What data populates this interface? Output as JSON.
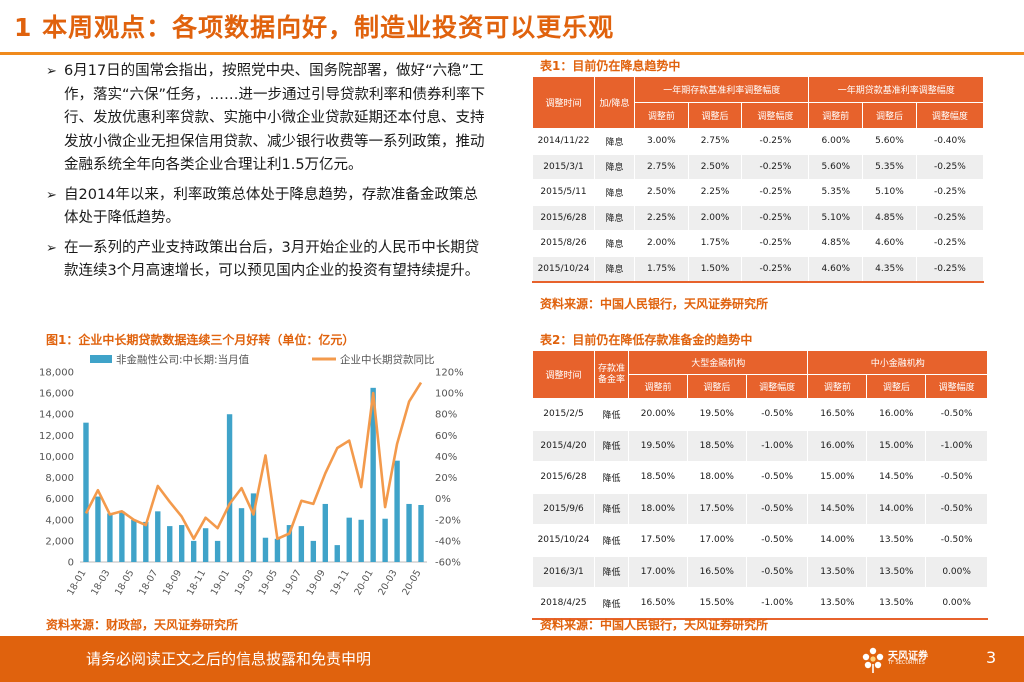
{
  "title": "1  本周观点：各项数据向好，制造业投资可以更乐观",
  "bullets": [
    "6月17日的国常会指出，按照党中央、国务院部署，做好“六稳”工作，落实“六保”任务，……进一步通过引导贷款利率和债券利率下行、发放优惠利率贷款、实施中小微企业贷款延期还本付息、支持发放小微企业无担保信用贷款、减少银行收费等一系列政策，推动金融系统全年向各类企业合理让利1.5万亿元。",
    "自2014年以来，利率政策总体处于降息趋势，存款准备金政策总体处于降低趋势。",
    "在一系列的产业支持政策出台后，3月开始企业的人民币中长期贷款连续3个月高速增长，可以预见国内企业的投资有望持续提升。"
  ],
  "bullet_mark": "➢",
  "fig1": {
    "title": "图1：企业中长期贷款数据连续三个月好转（单位：亿元）",
    "source": "资料来源：财政部，天风证券研究所"
  },
  "chart_data": {
    "type": "bar+line",
    "legend": [
      "非金融性公司:中长期:当月值",
      "企业中长期贷款同比"
    ],
    "x_ticks": [
      "18-01",
      "18-03",
      "18-05",
      "18-07",
      "18-09",
      "18-11",
      "19-01",
      "19-03",
      "19-05",
      "19-07",
      "19-09",
      "19-11",
      "20-01",
      "20-03",
      "20-05"
    ],
    "y_left_ticks": [
      "0",
      "2,000",
      "4,000",
      "6,000",
      "8,000",
      "10,000",
      "12,000",
      "14,000",
      "16,000",
      "18,000"
    ],
    "y_right_ticks": [
      "-60%",
      "-40%",
      "-20%",
      "0%",
      "20%",
      "40%",
      "60%",
      "80%",
      "100%",
      "120%"
    ],
    "ylim_left": [
      0,
      18000
    ],
    "ylim_right": [
      -60,
      120
    ],
    "bar_color": "#3fa3c9",
    "line_color": "#f39a4c",
    "series": [
      {
        "name": "非金融性公司:中长期:当月值",
        "values": [
          13200,
          6200,
          4600,
          4800,
          4000,
          3800,
          4800,
          3400,
          3500,
          2000,
          3200,
          2000,
          14000,
          5100,
          6500,
          2300,
          2200,
          3500,
          3400,
          2000,
          5500,
          1600,
          4200,
          4000,
          16500,
          4100,
          9600,
          5500,
          5400
        ]
      },
      {
        "name": "企业中长期贷款同比",
        "values": [
          -14,
          8,
          -15,
          -12,
          -20,
          -25,
          12,
          -3,
          -17,
          -38,
          -18,
          -28,
          -5,
          10,
          -15,
          41,
          -38,
          -33,
          -2,
          -5,
          24,
          48,
          55,
          11,
          100,
          -8,
          52,
          92,
          110
        ]
      }
    ]
  },
  "table1": {
    "title": "表1：目前仍在降息趋势中",
    "source": "资料来源：中国人民银行，天风证券研究所",
    "head_date": "调整时间",
    "head_dir": "加/降息",
    "group1": "一年期存款基准利率调整幅度",
    "group2": "一年期贷款基准利率调整幅度",
    "sub": [
      "调整前",
      "调整后",
      "调整幅度",
      "调整前",
      "调整后",
      "调整幅度"
    ],
    "rows": [
      [
        "2014/11/22",
        "降息",
        "3.00%",
        "2.75%",
        "-0.25%",
        "6.00%",
        "5.60%",
        "-0.40%"
      ],
      [
        "2015/3/1",
        "降息",
        "2.75%",
        "2.50%",
        "-0.25%",
        "5.60%",
        "5.35%",
        "-0.25%"
      ],
      [
        "2015/5/11",
        "降息",
        "2.50%",
        "2.25%",
        "-0.25%",
        "5.35%",
        "5.10%",
        "-0.25%"
      ],
      [
        "2015/6/28",
        "降息",
        "2.25%",
        "2.00%",
        "-0.25%",
        "5.10%",
        "4.85%",
        "-0.25%"
      ],
      [
        "2015/8/26",
        "降息",
        "2.00%",
        "1.75%",
        "-0.25%",
        "4.85%",
        "4.60%",
        "-0.25%"
      ],
      [
        "2015/10/24",
        "降息",
        "1.75%",
        "1.50%",
        "-0.25%",
        "4.60%",
        "4.35%",
        "-0.25%"
      ]
    ]
  },
  "table2": {
    "title": "表2：目前仍在降低存款准备金的趋势中",
    "source": "资料来源：中国人民银行，天风证券研究所",
    "head_date": "调整时间",
    "head_dir": "存款准备金率",
    "group1": "大型金融机构",
    "group2": "中小金融机构",
    "sub": [
      "调整前",
      "调整后",
      "调整幅度",
      "调整前",
      "调整后",
      "调整幅度"
    ],
    "rows": [
      [
        "2015/2/5",
        "降低",
        "20.00%",
        "19.50%",
        "-0.50%",
        "16.50%",
        "16.00%",
        "-0.50%"
      ],
      [
        "2015/4/20",
        "降低",
        "19.50%",
        "18.50%",
        "-1.00%",
        "16.00%",
        "15.00%",
        "-1.00%"
      ],
      [
        "2015/6/28",
        "降低",
        "18.50%",
        "18.00%",
        "-0.50%",
        "15.00%",
        "14.50%",
        "-0.50%"
      ],
      [
        "2015/9/6",
        "降低",
        "18.00%",
        "17.50%",
        "-0.50%",
        "14.50%",
        "14.00%",
        "-0.50%"
      ],
      [
        "2015/10/24",
        "降低",
        "17.50%",
        "17.00%",
        "-0.50%",
        "14.00%",
        "13.50%",
        "-0.50%"
      ],
      [
        "2016/3/1",
        "降低",
        "17.00%",
        "16.50%",
        "-0.50%",
        "13.50%",
        "13.50%",
        "0.00%"
      ],
      [
        "2018/4/25",
        "降低",
        "16.50%",
        "15.50%",
        "-1.00%",
        "13.50%",
        "13.50%",
        "0.00%"
      ]
    ]
  },
  "footer": {
    "text": "请务必阅读正文之后的信息披露和免责申明",
    "logo_name": "天风证券",
    "logo_sub": "TF SECURITIES",
    "page": "3",
    "color": "#e0620d"
  }
}
